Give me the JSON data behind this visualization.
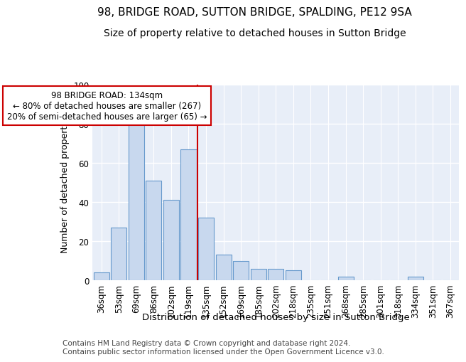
{
  "title": "98, BRIDGE ROAD, SUTTON BRIDGE, SPALDING, PE12 9SA",
  "subtitle": "Size of property relative to detached houses in Sutton Bridge",
  "xlabel": "Distribution of detached houses by size in Sutton Bridge",
  "ylabel": "Number of detached properties",
  "categories": [
    "36sqm",
    "53sqm",
    "69sqm",
    "86sqm",
    "102sqm",
    "119sqm",
    "135sqm",
    "152sqm",
    "169sqm",
    "185sqm",
    "202sqm",
    "218sqm",
    "235sqm",
    "251sqm",
    "268sqm",
    "285sqm",
    "301sqm",
    "318sqm",
    "334sqm",
    "351sqm",
    "367sqm"
  ],
  "values": [
    4,
    27,
    84,
    51,
    41,
    67,
    32,
    13,
    10,
    6,
    6,
    5,
    0,
    0,
    2,
    0,
    0,
    0,
    2,
    0,
    0
  ],
  "bar_color": "#c8d8ee",
  "bar_edge_color": "#6699cc",
  "vline_color": "#cc0000",
  "vline_x_index": 5,
  "annotation_text": "98 BRIDGE ROAD: 134sqm\n← 80% of detached houses are smaller (267)\n20% of semi-detached houses are larger (65) →",
  "annotation_box_facecolor": "#ffffff",
  "annotation_box_edgecolor": "#cc0000",
  "ylim": [
    0,
    100
  ],
  "yticks": [
    0,
    20,
    40,
    60,
    80,
    100
  ],
  "bg_color": "#ffffff",
  "plot_bg_color": "#e8eef8",
  "title_fontsize": 11,
  "subtitle_fontsize": 10,
  "xlabel_fontsize": 9.5,
  "ylabel_fontsize": 9,
  "tick_fontsize": 8.5,
  "annotation_fontsize": 8.5,
  "footer_fontsize": 7.5,
  "footer": "Contains HM Land Registry data © Crown copyright and database right 2024.\nContains public sector information licensed under the Open Government Licence v3.0."
}
